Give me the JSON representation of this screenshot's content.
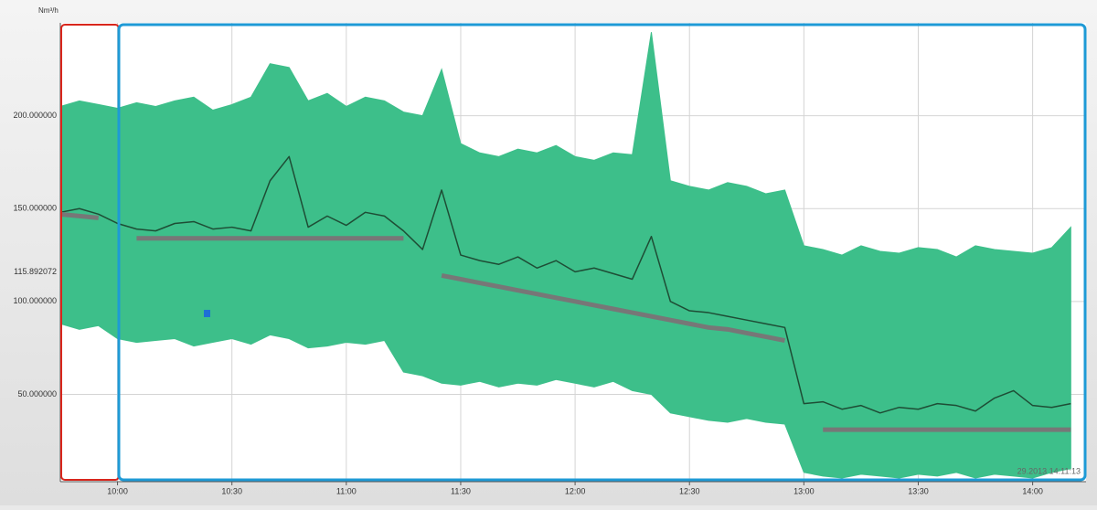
{
  "chart_data": {
    "type": "band-line",
    "y_unit": "Nm³/h",
    "timestamp": "29.2013 14:11:13",
    "xlim": [
      585,
      854
    ],
    "ylim": [
      3,
      250
    ],
    "grid": true,
    "xticks": [
      {
        "value": 600,
        "label": "10:00"
      },
      {
        "value": 630,
        "label": "10:30"
      },
      {
        "value": 660,
        "label": "11:00"
      },
      {
        "value": 690,
        "label": "11:30"
      },
      {
        "value": 720,
        "label": "12:00"
      },
      {
        "value": 750,
        "label": "12:30"
      },
      {
        "value": 780,
        "label": "13:00"
      },
      {
        "value": 810,
        "label": "13:30"
      },
      {
        "value": 840,
        "label": "14:00"
      }
    ],
    "yticks": [
      {
        "value": 50,
        "label": "50.000000"
      },
      {
        "value": 100,
        "label": "100.000000"
      },
      {
        "value": 150,
        "label": "150.000000"
      },
      {
        "value": 200,
        "label": "200.000000"
      }
    ],
    "reference": {
      "value": 115.892072,
      "label": "115.892072"
    },
    "x": [
      585,
      590,
      595,
      600,
      605,
      610,
      615,
      620,
      625,
      630,
      635,
      640,
      645,
      650,
      655,
      660,
      665,
      670,
      675,
      680,
      685,
      690,
      695,
      700,
      705,
      710,
      715,
      720,
      725,
      730,
      735,
      740,
      745,
      750,
      755,
      760,
      765,
      770,
      775,
      780,
      785,
      790,
      795,
      800,
      805,
      810,
      815,
      820,
      825,
      830,
      835,
      840,
      845,
      850
    ],
    "series": [
      {
        "type": "band",
        "color": "#3dbf8a",
        "upper": [
          205,
          208,
          206,
          204,
          207,
          205,
          208,
          210,
          203,
          206,
          210,
          228,
          226,
          208,
          212,
          205,
          210,
          208,
          202,
          200,
          225,
          185,
          180,
          178,
          182,
          180,
          184,
          178,
          176,
          180,
          179,
          245,
          165,
          162,
          160,
          164,
          162,
          158,
          160,
          130,
          128,
          125,
          130,
          127,
          126,
          129,
          128,
          124,
          130,
          128,
          127,
          126,
          129,
          140
        ],
        "lower": [
          88,
          85,
          87,
          80,
          78,
          79,
          80,
          76,
          78,
          80,
          77,
          82,
          80,
          75,
          76,
          78,
          77,
          79,
          62,
          60,
          56,
          55,
          57,
          54,
          56,
          55,
          58,
          56,
          54,
          57,
          52,
          50,
          40,
          38,
          36,
          35,
          37,
          35,
          34,
          8,
          6,
          5,
          7,
          6,
          5,
          7,
          6,
          8,
          5,
          7,
          6,
          5,
          8,
          10
        ]
      },
      {
        "type": "line",
        "color": "#1e4d35",
        "width": 1.5,
        "values": [
          148,
          150,
          147,
          142,
          139,
          138,
          142,
          143,
          139,
          140,
          138,
          165,
          178,
          140,
          146,
          141,
          148,
          146,
          138,
          128,
          160,
          125,
          122,
          120,
          124,
          118,
          122,
          116,
          118,
          115,
          112,
          135,
          100,
          95,
          94,
          92,
          90,
          88,
          86,
          45,
          46,
          42,
          44,
          40,
          43,
          42,
          45,
          44,
          41,
          48,
          52,
          44,
          43,
          45
        ]
      },
      {
        "type": "line",
        "color": "#777777",
        "width": 5,
        "values": [
          147,
          146,
          145,
          null,
          134,
          134,
          134,
          134,
          134,
          134,
          134,
          134,
          134,
          134,
          134,
          134,
          134,
          134,
          134,
          null,
          114,
          112,
          110,
          108,
          106,
          104,
          102,
          100,
          98,
          96,
          94,
          92,
          90,
          88,
          86,
          85,
          83,
          81,
          79,
          null,
          31,
          31,
          31,
          31,
          31,
          31,
          31,
          31,
          31,
          31,
          31,
          31,
          31,
          31
        ]
      }
    ]
  }
}
